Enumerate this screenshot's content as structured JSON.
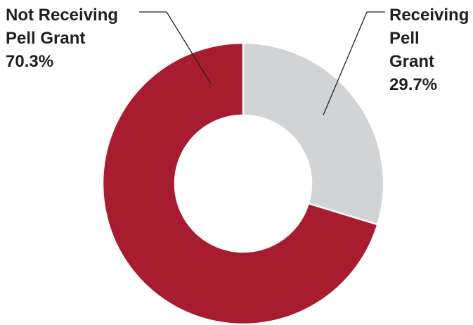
{
  "chart_data": {
    "type": "pie",
    "style": "donut",
    "slices": [
      {
        "category": "Receiving Pell Grant",
        "label_lines": [
          "Receiving",
          "Pell",
          "Grant"
        ],
        "value": 29.7,
        "value_label": "29.7%",
        "color": "#d1d3d4"
      },
      {
        "category": "Not Receiving Pell Grant",
        "label_lines": [
          "Not Receiving",
          "Pell Grant"
        ],
        "value": 70.3,
        "value_label": "70.3%",
        "color": "#a71c2e"
      }
    ],
    "start_angle_deg": 0,
    "direction": "clockwise",
    "legend": "none"
  }
}
